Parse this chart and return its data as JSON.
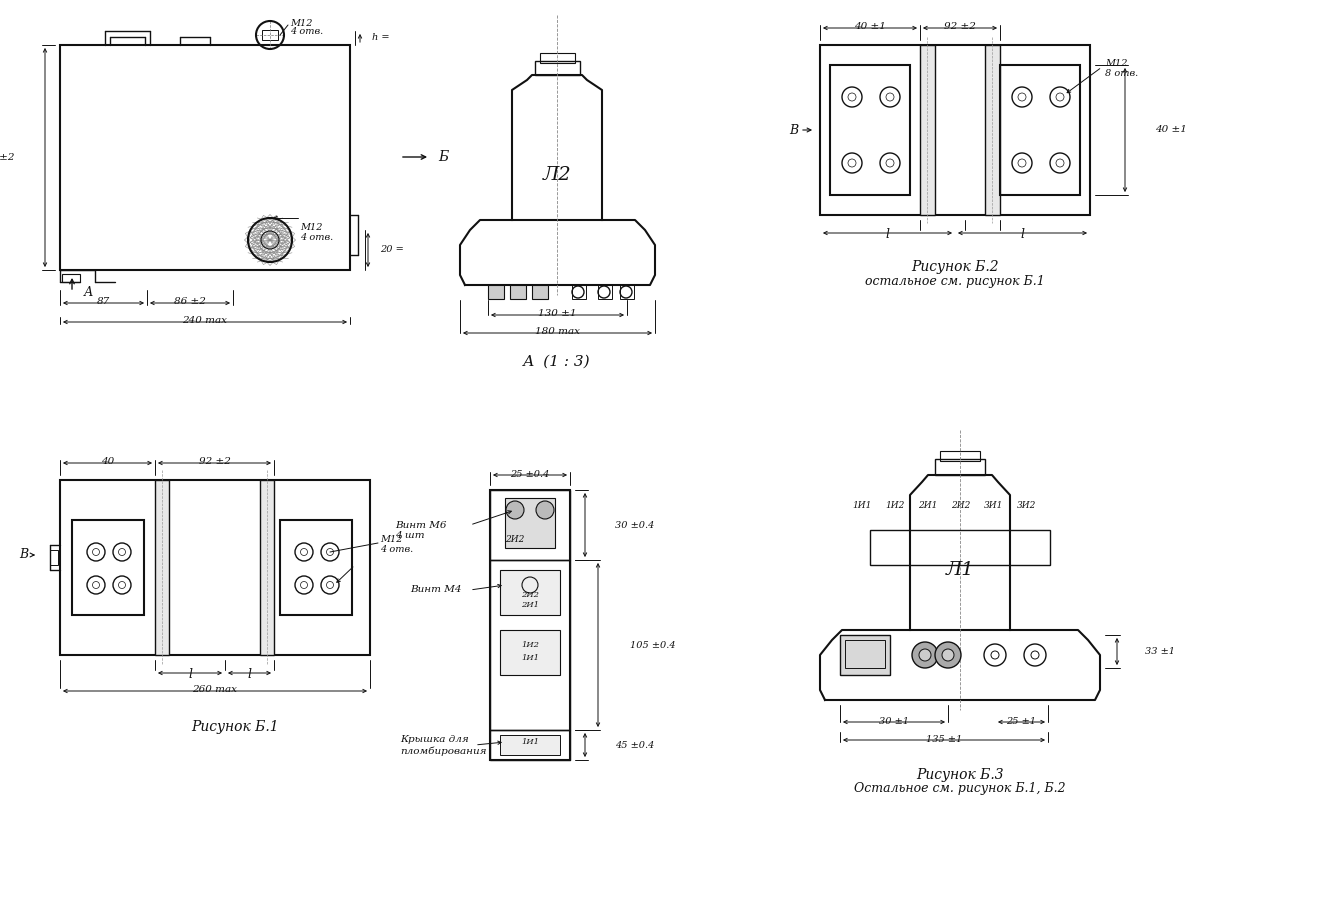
{
  "bg_color": "#ffffff",
  "line_color": "#111111",
  "fig_width": 13.37,
  "fig_height": 9.0,
  "caption1": "Рисунок Б.1",
  "caption2_line1": "Рисунок Б.2",
  "caption2_line2": "остальное см. рисунок Б.1",
  "caption3_line1": "Рисунок Б.3",
  "caption3_line2": "Остальное см. рисунок Б.1, Б.2",
  "label_A_section": "А  (1 : 3)",
  "label_L2": "Л2",
  "label_L1": "Л1"
}
